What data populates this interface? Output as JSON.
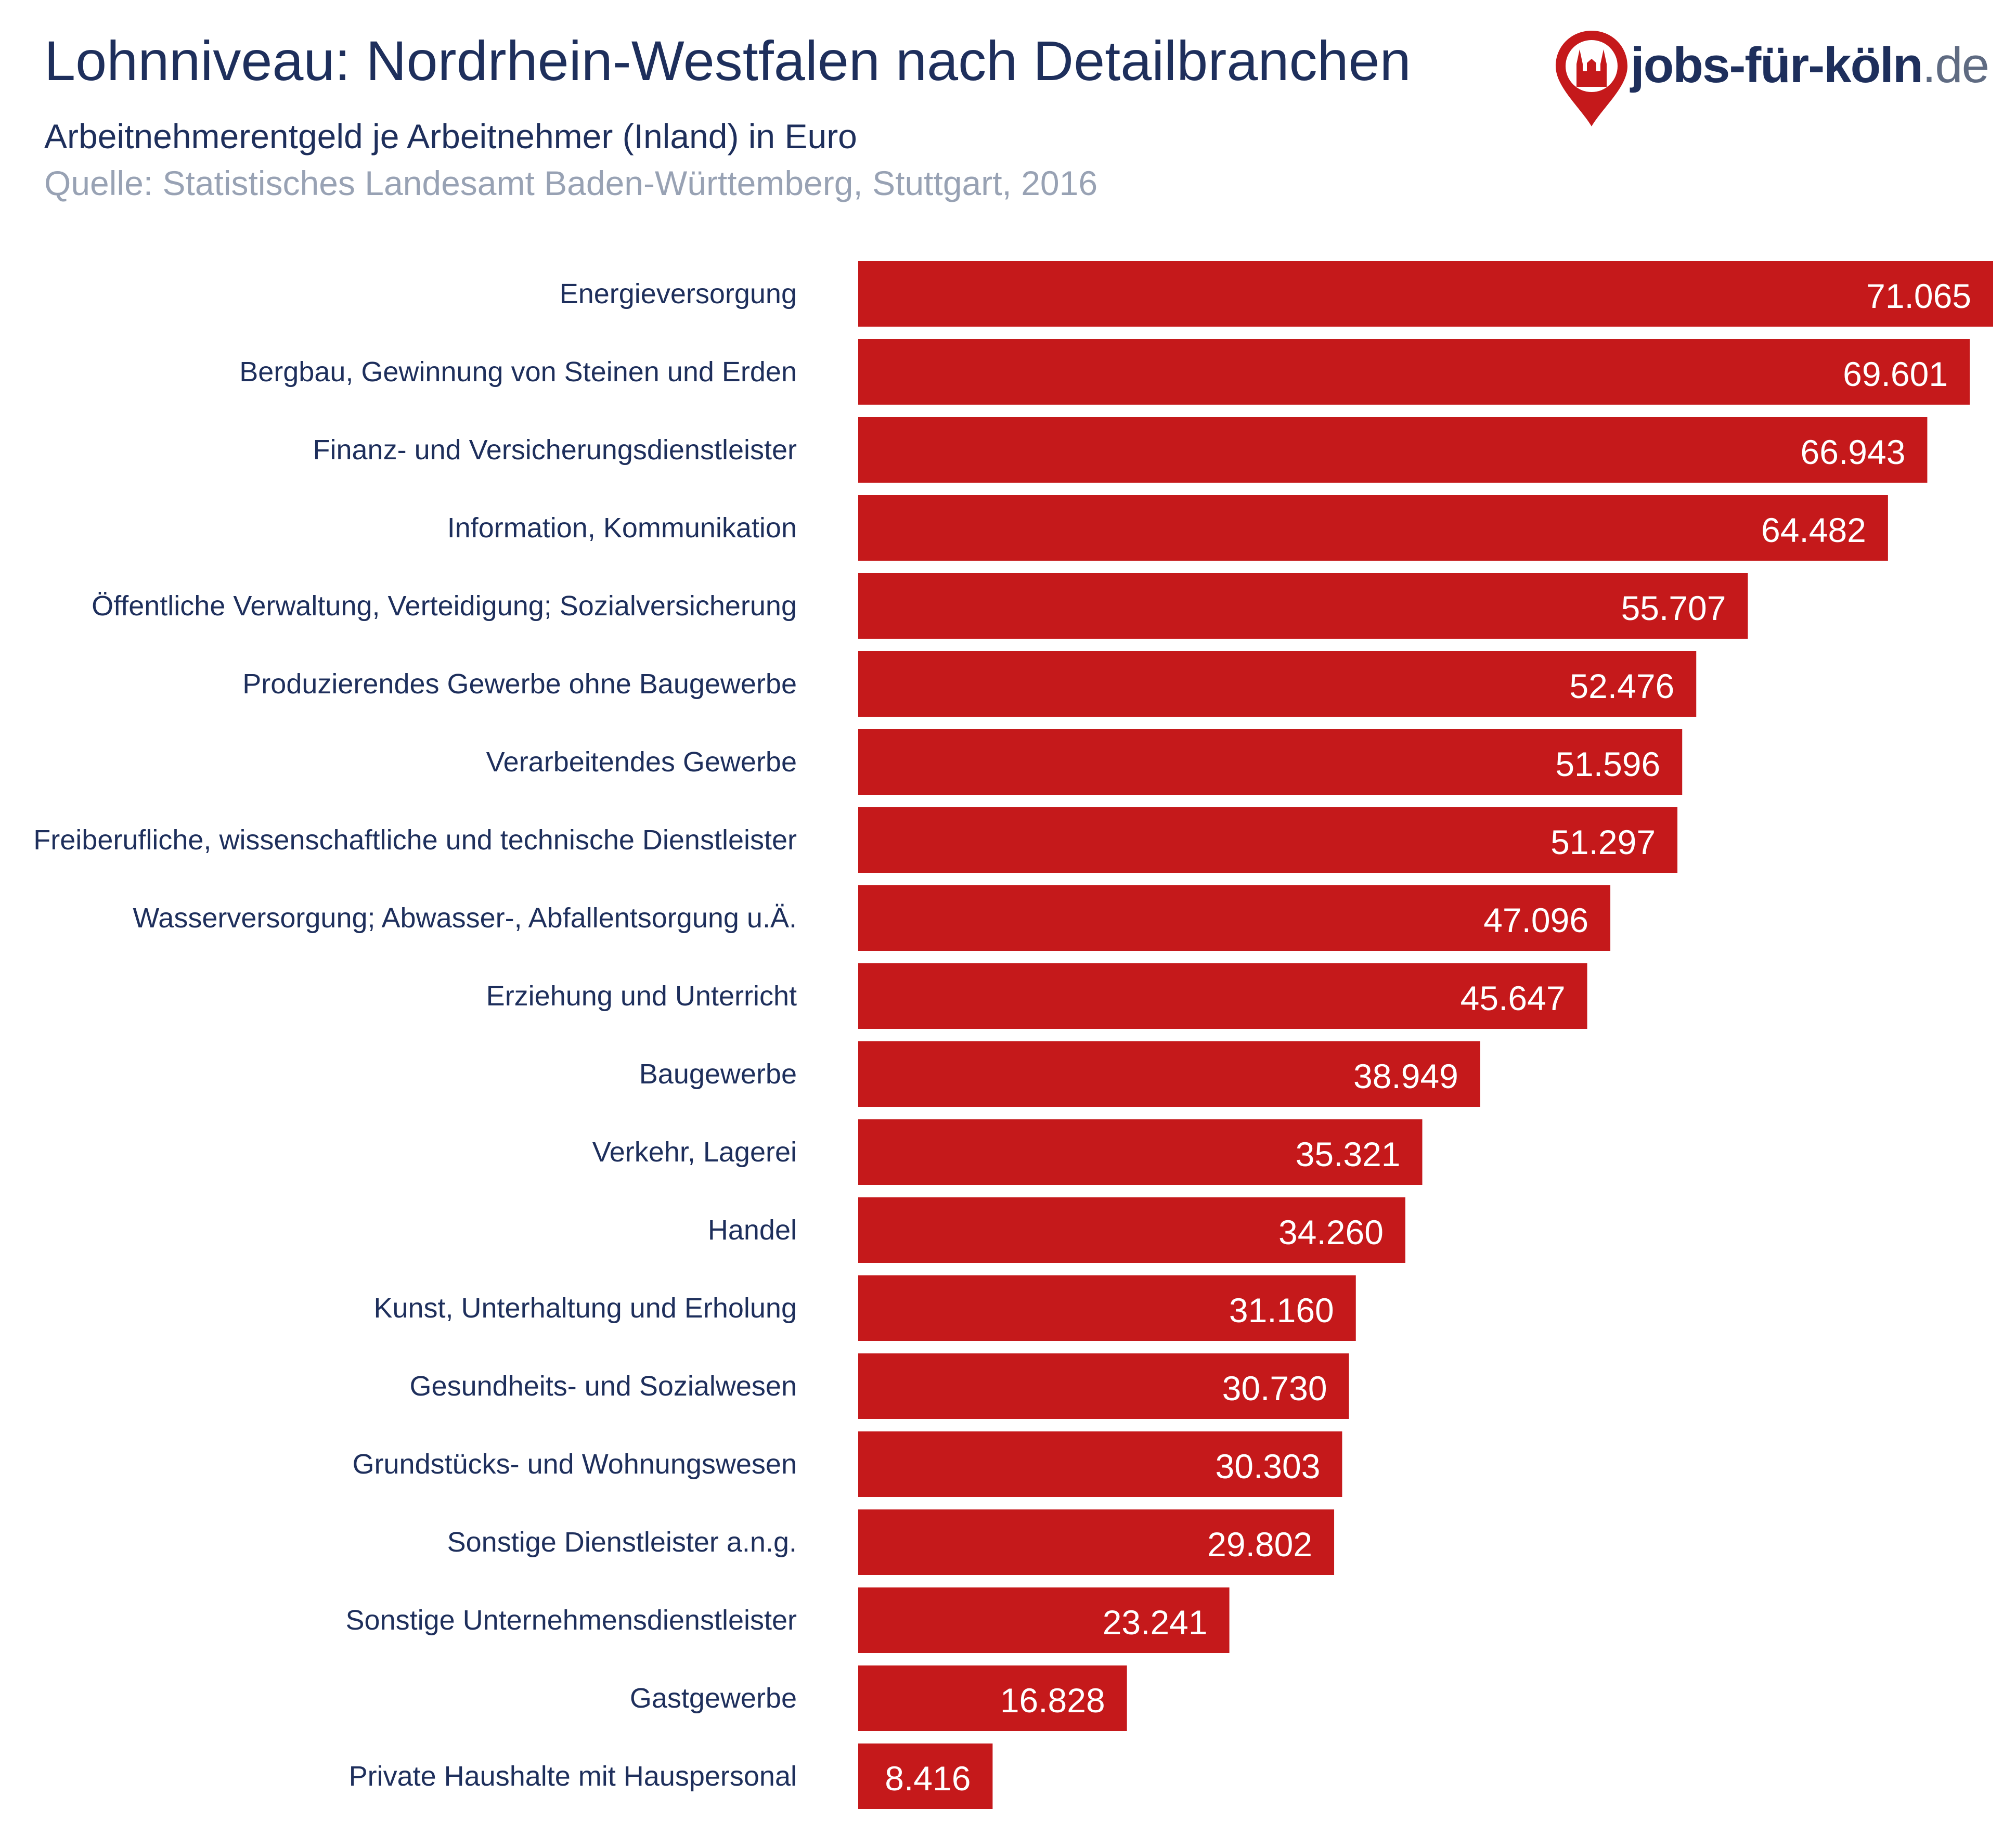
{
  "header": {
    "title": "Lohnniveau: Nordrhein-Westfalen nach Detailbranchen",
    "subtitle": "Arbeitnehmerentgeld je Arbeitnehmer (Inland) in Euro",
    "source": "Quelle: Statistisches Landesamt Baden-Württemberg, Stuttgart, 2016"
  },
  "logo": {
    "name": "jobs-für-köln",
    "tld": ".de",
    "icon": "cologne-cathedral-pin-icon"
  },
  "colors": {
    "bar": "#c5191b",
    "title": "#1e2f5c",
    "source": "#98a2b4",
    "value_label": "#ffffff"
  },
  "chart_data": {
    "type": "bar",
    "orientation": "horizontal",
    "title": "Lohnniveau: Nordrhein-Westfalen nach Detailbranchen",
    "subtitle": "Arbeitnehmerentgeld je Arbeitnehmer (Inland) in Euro",
    "grid": false,
    "legend": "none",
    "categories": [
      "Energieversorgung",
      "Bergbau, Gewinnung von Steinen und Erden",
      "Finanz- und Versicherungsdienstleister",
      "Information, Kommunikation",
      "Öffentliche Verwaltung, Verteidigung; Sozialversicherung",
      "Produzierendes Gewerbe ohne Baugewerbe",
      "Verarbeitendes Gewerbe",
      "Freiberufliche, wissenschaftliche und technische Dienstleister",
      "Wasserversorgung; Abwasser-, Abfallentsorgung u.Ä.",
      "Erziehung und Unterricht",
      "Baugewerbe",
      "Verkehr, Lagerei",
      "Handel",
      "Kunst, Unterhaltung und Erholung",
      "Gesundheits- und Sozialwesen",
      "Grundstücks- und Wohnungswesen",
      "Sonstige Dienstleister a.n.g.",
      "Sonstige Unternehmensdienstleister",
      "Gastgewerbe",
      "Private Haushalte mit Hauspersonal"
    ],
    "values": [
      71065,
      69601,
      66943,
      64482,
      55707,
      52476,
      51596,
      51297,
      47096,
      45647,
      38949,
      35321,
      34260,
      31160,
      30730,
      30303,
      29802,
      23241,
      16828,
      8416
    ],
    "value_labels": [
      "71.065",
      "69.601",
      "66.943",
      "64.482",
      "55.707",
      "52.476",
      "51.596",
      "51.297",
      "47.096",
      "45.647",
      "38.949",
      "35.321",
      "34.260",
      "31.160",
      "30.730",
      "30.303",
      "29.802",
      "23.241",
      "16.828",
      "8.416"
    ],
    "xlim": [
      0,
      71065
    ]
  }
}
